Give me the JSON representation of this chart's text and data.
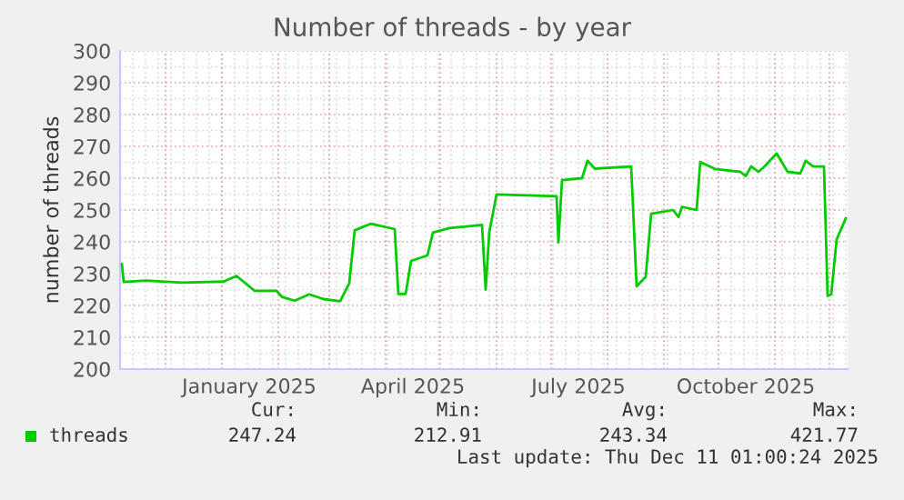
{
  "chart_data": {
    "type": "line",
    "title": "Number of threads - by year",
    "ylabel": "number of threads",
    "x": [
      "2024-11-07",
      "2024-11-08",
      "2024-11-20",
      "2024-12-10",
      "2025-01-02",
      "2025-01-09",
      "2025-01-19",
      "2025-01-31",
      "2025-02-03",
      "2025-02-10",
      "2025-02-18",
      "2025-02-26",
      "2025-03-07",
      "2025-03-12",
      "2025-03-15",
      "2025-03-24",
      "2025-04-06",
      "2025-04-08",
      "2025-04-12",
      "2025-04-15",
      "2025-04-24",
      "2025-04-27",
      "2025-05-06",
      "2025-05-24",
      "2025-05-26",
      "2025-05-28",
      "2025-06-01",
      "2025-07-04",
      "2025-07-05",
      "2025-07-07",
      "2025-07-18",
      "2025-07-21",
      "2025-07-25",
      "2025-08-14",
      "2025-08-17",
      "2025-08-22",
      "2025-08-25",
      "2025-09-06",
      "2025-09-09",
      "2025-09-11",
      "2025-09-19",
      "2025-09-21",
      "2025-09-29",
      "2025-10-13",
      "2025-10-16",
      "2025-10-19",
      "2025-10-23",
      "2025-10-26",
      "2025-11-02",
      "2025-11-08",
      "2025-11-15",
      "2025-11-18",
      "2025-11-22",
      "2025-11-28",
      "2025-11-30",
      "2025-12-02",
      "2025-12-05",
      "2025-12-10"
    ],
    "series": [
      {
        "name": "threads",
        "color": "#00cc00",
        "values": [
          233,
          227.4,
          227.8,
          227.2,
          227.5,
          229.3,
          224.6,
          224.6,
          222.7,
          221.5,
          223.5,
          222,
          221.3,
          227,
          243.6,
          245.7,
          244,
          223.6,
          223.6,
          234,
          235.7,
          242.9,
          244.3,
          245.3,
          225,
          243,
          254.9,
          254.3,
          239.8,
          259.4,
          260,
          265.5,
          263,
          263.7,
          226,
          229,
          248.8,
          250,
          247.8,
          251,
          250,
          265.1,
          262.9,
          262,
          260.7,
          263.7,
          262,
          263.5,
          267.8,
          262,
          261.5,
          265.5,
          263.7,
          263.7,
          223,
          223.5,
          240.8,
          247.4
        ]
      }
    ],
    "xlim": [
      "2024-11-06",
      "2025-12-11"
    ],
    "xticks": [
      {
        "value": "2025-01-16",
        "label": "January 2025"
      },
      {
        "value": "2025-04-16",
        "label": "April 2025"
      },
      {
        "value": "2025-07-16",
        "label": "July 2025"
      },
      {
        "value": "2025-10-16",
        "label": "October 2025"
      }
    ],
    "ylim": [
      200,
      300
    ],
    "yticks": [
      200,
      210,
      220,
      230,
      240,
      250,
      260,
      270,
      280,
      290,
      300
    ],
    "grid": true,
    "legend": "bottom left",
    "marker": "none",
    "line_style": "solid",
    "annotations": [
      "Cur:",
      "Min:",
      "Avg:",
      "Max:",
      "247.24",
      "212.91",
      "243.34",
      "421.77",
      "Last update: Thu Dec 11 01:00:24 2025"
    ]
  }
}
